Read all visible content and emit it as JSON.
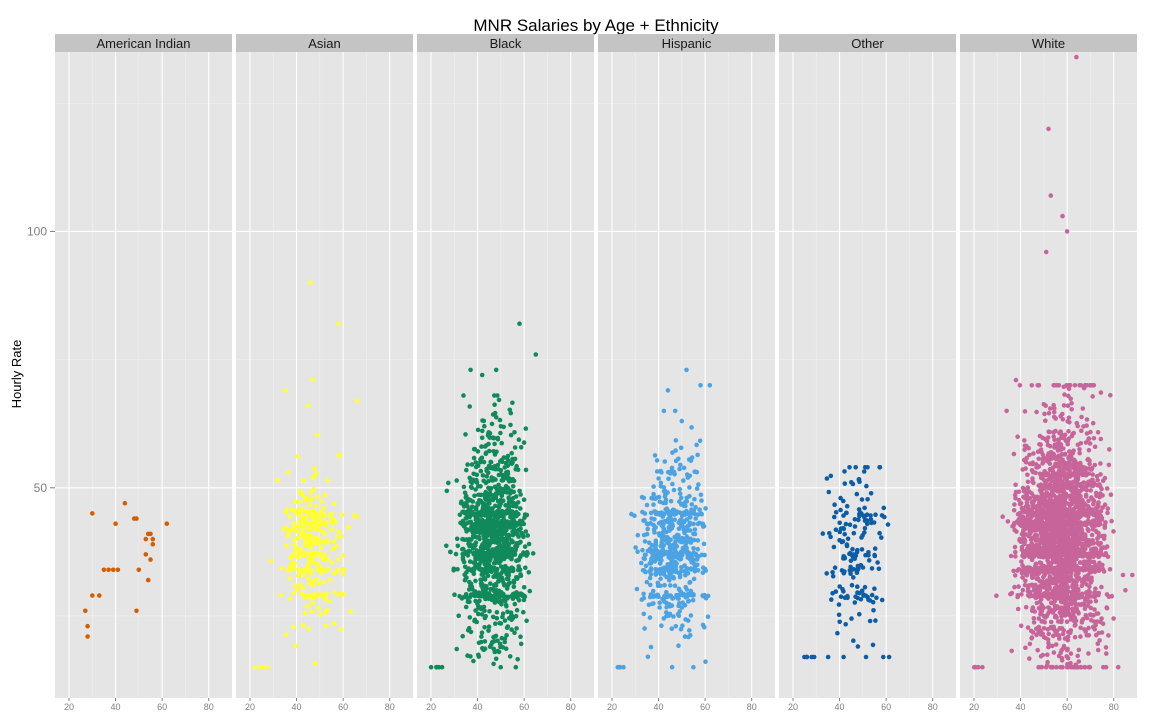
{
  "chart_data": {
    "type": "scatter",
    "title": "MNR Salaries by Age + Ethnicity",
    "xlabel": "",
    "ylabel": "Hourly Rate",
    "xlim": [
      14,
      90
    ],
    "ylim": [
      9,
      135
    ],
    "x_ticks": [
      20,
      40,
      60,
      80
    ],
    "y_ticks": [
      50,
      100
    ],
    "grid": true,
    "legend": "none",
    "facets": [
      {
        "label": "American Indian",
        "color": "#d55e00",
        "points": [
          [
            27,
            26
          ],
          [
            28,
            23
          ],
          [
            28,
            21
          ],
          [
            30,
            45
          ],
          [
            30,
            29
          ],
          [
            33,
            29
          ],
          [
            35,
            34
          ],
          [
            37,
            34
          ],
          [
            39,
            34
          ],
          [
            40,
            43
          ],
          [
            41,
            34
          ],
          [
            44,
            47
          ],
          [
            48,
            44
          ],
          [
            49,
            44
          ],
          [
            49,
            26
          ],
          [
            50,
            34
          ],
          [
            53,
            37
          ],
          [
            53,
            40
          ],
          [
            54,
            41
          ],
          [
            54,
            32
          ],
          [
            55,
            36
          ],
          [
            55,
            41
          ],
          [
            56,
            40
          ],
          [
            56,
            39
          ],
          [
            62,
            43
          ]
        ]
      },
      {
        "label": "Asian",
        "color": "#ffff33",
        "summary": {
          "n_points": 300,
          "x_range": [
            22,
            68
          ],
          "y_range": [
            15,
            90
          ],
          "typical_rate": [
            30,
            46
          ]
        },
        "outliers": [
          [
            46,
            90
          ],
          [
            47,
            71
          ],
          [
            35,
            69
          ],
          [
            66,
            67
          ],
          [
            58,
            82
          ]
        ]
      },
      {
        "label": "Black",
        "color": "#108a5a",
        "summary": {
          "n_points": 1200,
          "x_range": [
            20,
            68
          ],
          "y_range": [
            15,
            82
          ],
          "typical_rate": [
            27,
            48
          ]
        },
        "outliers": [
          [
            58,
            82
          ],
          [
            65,
            76
          ],
          [
            48,
            73
          ],
          [
            37,
            73
          ],
          [
            42,
            72
          ]
        ]
      },
      {
        "label": "Hispanic",
        "color": "#4ba3e3",
        "summary": {
          "n_points": 600,
          "x_range": [
            20,
            68
          ],
          "y_range": [
            15,
            73
          ],
          "typical_rate": [
            27,
            45
          ]
        },
        "outliers": [
          [
            52,
            73
          ],
          [
            44,
            69
          ],
          [
            58,
            70
          ],
          [
            62,
            70
          ],
          [
            50,
            63
          ]
        ]
      },
      {
        "label": "Other",
        "color": "#0c5da5",
        "summary": {
          "n_points": 180,
          "x_range": [
            24,
            66
          ],
          "y_range": [
            17,
            54
          ],
          "typical_rate": [
            23,
            45
          ]
        }
      },
      {
        "label": "White",
        "color": "#c7659a",
        "summary": {
          "n_points": 2600,
          "x_range": [
            20,
            88
          ],
          "y_range": [
            15,
            135
          ],
          "typical_rate": [
            27,
            50
          ]
        },
        "outliers": [
          [
            64,
            134
          ],
          [
            52,
            120
          ],
          [
            53,
            107
          ],
          [
            58,
            103
          ],
          [
            60,
            100
          ],
          [
            51,
            96
          ],
          [
            88,
            33
          ],
          [
            84,
            33
          ],
          [
            85,
            30
          ],
          [
            73,
            37
          ],
          [
            72,
            58
          ],
          [
            38,
            71
          ],
          [
            34,
            65
          ]
        ]
      }
    ]
  }
}
